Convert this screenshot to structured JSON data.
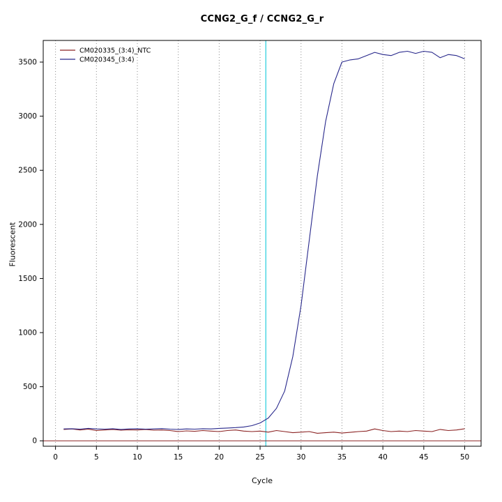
{
  "title": "CCNG2_G_f / CCNG2_G_r",
  "chart_data": {
    "type": "line",
    "title": "CCNG2_G_f / CCNG2_G_r",
    "xlabel": "Cycle",
    "ylabel": "Fluorescent",
    "xlim": [
      -1.5,
      52
    ],
    "ylim": [
      -50,
      3700
    ],
    "x_ticks": [
      0,
      5,
      10,
      15,
      20,
      25,
      30,
      35,
      40,
      45,
      50
    ],
    "y_ticks": [
      0,
      500,
      1000,
      1500,
      2000,
      2500,
      3000,
      3500
    ],
    "grid": "vertical-dotted",
    "grid_color": "#8a8a8a",
    "legend_position": "top-left",
    "threshold_line_y": 0,
    "threshold_line_color": "#8b2323",
    "ct_line_x": 25.7,
    "ct_line_color": "#35d0e0",
    "x": [
      1,
      2,
      3,
      4,
      5,
      6,
      7,
      8,
      9,
      10,
      11,
      12,
      13,
      14,
      15,
      16,
      17,
      18,
      19,
      20,
      21,
      22,
      23,
      24,
      25,
      26,
      27,
      28,
      29,
      30,
      31,
      32,
      33,
      34,
      35,
      36,
      37,
      38,
      39,
      40,
      41,
      42,
      43,
      44,
      45,
      46,
      47,
      48,
      49,
      50
    ],
    "series": [
      {
        "name": "CM020335_(3:4)_NTC",
        "color": "#8b2323",
        "values": [
          105,
          110,
          100,
          108,
          95,
          100,
          105,
          98,
          102,
          100,
          105,
          98,
          100,
          95,
          85,
          92,
          88,
          95,
          90,
          85,
          95,
          100,
          90,
          85,
          90,
          80,
          95,
          85,
          75,
          80,
          85,
          70,
          75,
          80,
          72,
          78,
          85,
          90,
          110,
          95,
          85,
          90,
          85,
          95,
          90,
          85,
          105,
          95,
          100,
          112
        ]
      },
      {
        "name": "CM020345_(3:4)",
        "color": "#27278b",
        "values": [
          110,
          112,
          108,
          115,
          110,
          108,
          112,
          105,
          110,
          112,
          108,
          110,
          113,
          108,
          105,
          110,
          108,
          112,
          110,
          115,
          118,
          122,
          128,
          140,
          165,
          210,
          300,
          460,
          780,
          1250,
          1850,
          2450,
          2950,
          3300,
          3500,
          3520,
          3530,
          3560,
          3590,
          3570,
          3560,
          3590,
          3600,
          3580,
          3600,
          3590,
          3540,
          3570,
          3560,
          3530
        ]
      }
    ]
  }
}
